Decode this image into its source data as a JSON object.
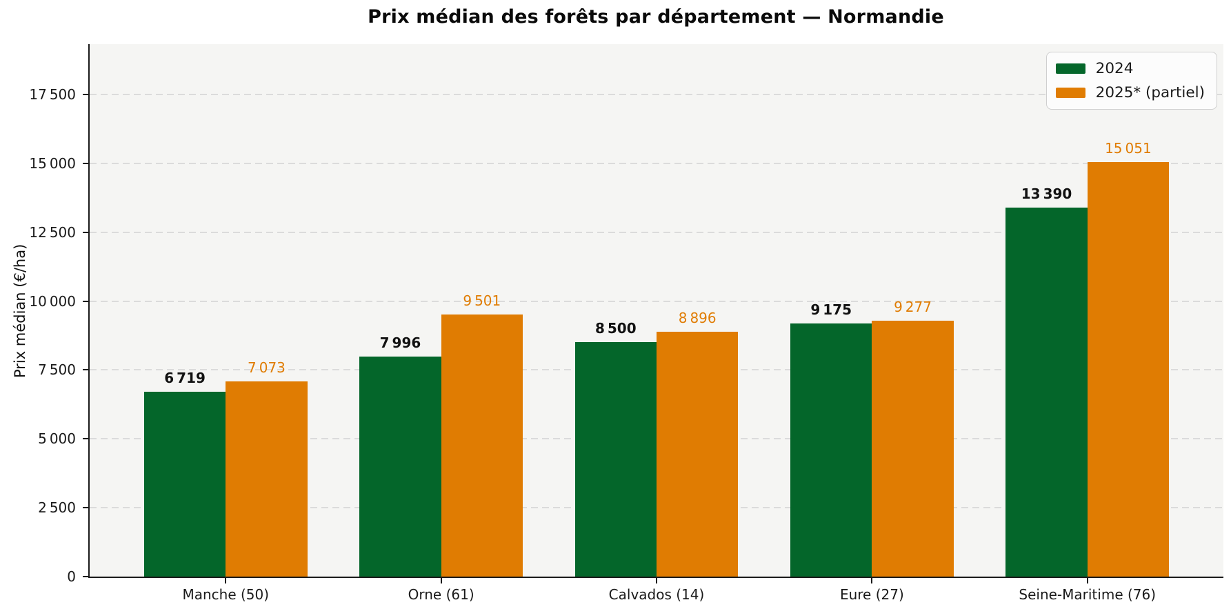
{
  "chart_data": {
    "type": "bar",
    "title": "Prix médian des forêts par département — Normandie",
    "ylabel": "Prix médian (€/ha)",
    "xlabel": "",
    "categories": [
      "Manche (50)",
      "Orne (61)",
      "Calvados (14)",
      "Eure (27)",
      "Seine-Maritime (76)"
    ],
    "series": [
      {
        "name": "2024",
        "color": "#04662a",
        "values": [
          6719,
          7996,
          8500,
          9175,
          13390
        ],
        "value_labels": [
          "6 719",
          "7 996",
          "8 500",
          "9 175",
          "13 390"
        ]
      },
      {
        "name": "2025* (partiel)",
        "color": "#e07c02",
        "values": [
          7073,
          9501,
          8896,
          9277,
          15051
        ],
        "value_labels": [
          "7 073",
          "9 501",
          "8 896",
          "9 277",
          "15 051"
        ]
      }
    ],
    "ylim": [
      0,
      19325
    ],
    "yticks": {
      "values": [
        0,
        2500,
        5000,
        7500,
        10000,
        12500,
        15000,
        17500
      ],
      "labels": [
        "0",
        "2 500",
        "5 000",
        "7 500",
        "10 000",
        "12 500",
        "15 000",
        "17 500"
      ]
    },
    "grid": "horizontal-dashed",
    "legend_position": "upper right",
    "layout": {
      "group_centers_pct": [
        12,
        31,
        50,
        69,
        88
      ],
      "bar_width_pct": 7.2
    }
  },
  "colors": {
    "green_2024": "#04662a",
    "orange_2025": "#e07c02",
    "plot_background": "#f5f5f3",
    "figure_background": "#ffffff",
    "grid": "#dbdbdb",
    "axis": "#1a1a1a"
  }
}
